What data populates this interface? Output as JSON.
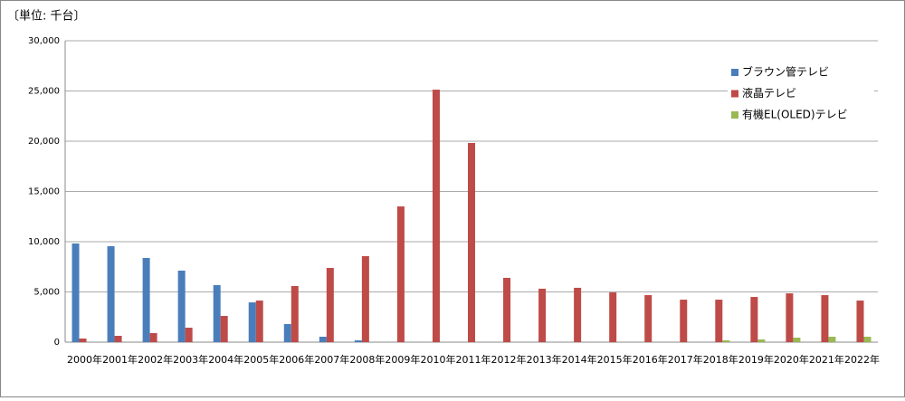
{
  "chart_data": {
    "type": "bar",
    "unit": "〔単位: 千台〕",
    "categories": [
      "2000年",
      "2001年",
      "2002年",
      "2003年",
      "2004年",
      "2005年",
      "2006年",
      "2007年",
      "2008年",
      "2009年",
      "2010年",
      "2011年",
      "2012年",
      "2013年",
      "2014年",
      "2015年",
      "2016年",
      "2017年",
      "2018年",
      "2019年",
      "2020年",
      "2021年",
      "2022年"
    ],
    "series": [
      {
        "name": "ブラウン管テレビ",
        "color": "#4a7ebb",
        "values": [
          9820,
          9550,
          8380,
          7120,
          5680,
          3960,
          1800,
          540,
          180,
          null,
          null,
          null,
          null,
          null,
          null,
          null,
          null,
          null,
          null,
          null,
          null,
          null,
          null
        ]
      },
      {
        "name": "液晶テレビ",
        "color": "#be4b48",
        "values": [
          360,
          630,
          900,
          1440,
          2610,
          4140,
          5590,
          7390,
          8560,
          13510,
          25130,
          19820,
          6400,
          5320,
          5410,
          4950,
          4680,
          4230,
          4230,
          4500,
          4860,
          4680,
          4140
        ]
      },
      {
        "name": "有機EL(OLED)テレビ",
        "color": "#98b954",
        "values": [
          null,
          null,
          null,
          null,
          null,
          null,
          null,
          null,
          null,
          null,
          null,
          null,
          null,
          null,
          null,
          null,
          null,
          null,
          180,
          270,
          450,
          540,
          540
        ]
      }
    ],
    "ylim": [
      0,
      30000
    ],
    "yticks": [
      0,
      {
        "value": 5000,
        "label": "5,000"
      },
      {
        "value": 10000,
        "label": "10,000"
      },
      {
        "value": 15000,
        "label": "15,000"
      },
      {
        "value": 20000,
        "label": "20,000"
      },
      {
        "value": 25000,
        "label": "25,000"
      },
      {
        "value": 30000,
        "label": "30,000"
      }
    ],
    "grid": true,
    "legend": "top-right"
  }
}
